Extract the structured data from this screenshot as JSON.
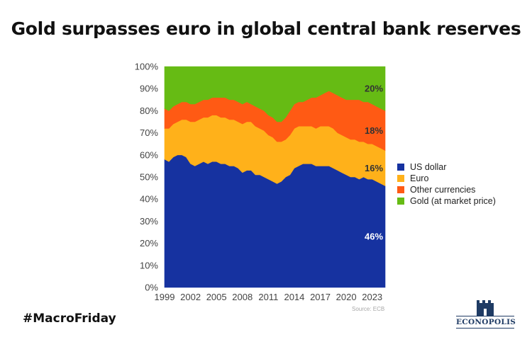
{
  "header": {
    "title": "Gold surpasses euro in global central bank reserves"
  },
  "footer": {
    "hashtag": "#MacroFriday",
    "source": "Source: ECB",
    "logo_text": "ECONOPOLIS"
  },
  "colors": {
    "us_dollar": "#1632a0",
    "euro": "#ffb11a",
    "other": "#ff5a14",
    "gold": "#66bb14"
  },
  "chart_data": {
    "type": "area",
    "stacked": true,
    "title": "",
    "xlabel": "",
    "ylabel": "",
    "xlim": [
      1999,
      2024.5
    ],
    "ylim": [
      0,
      100
    ],
    "x_ticks": [
      "1999",
      "2002",
      "2005",
      "2008",
      "2011",
      "2014",
      "2017",
      "2020",
      "2023"
    ],
    "y_ticks": [
      "0%",
      "10%",
      "20%",
      "30%",
      "40%",
      "50%",
      "60%",
      "70%",
      "80%",
      "90%",
      "100%"
    ],
    "grid": false,
    "legend_position": "right",
    "x": [
      1999,
      1999.5,
      2000,
      2000.5,
      2001,
      2001.5,
      2002,
      2002.5,
      2003,
      2003.5,
      2004,
      2004.5,
      2005,
      2005.5,
      2006,
      2006.5,
      2007,
      2007.5,
      2008,
      2008.5,
      2009,
      2009.5,
      2010,
      2010.5,
      2011,
      2011.5,
      2012,
      2012.5,
      2013,
      2013.5,
      2014,
      2014.5,
      2015,
      2015.5,
      2016,
      2016.5,
      2017,
      2017.5,
      2018,
      2018.5,
      2019,
      2019.5,
      2020,
      2020.5,
      2021,
      2021.5,
      2022,
      2022.5,
      2023,
      2023.5,
      2024,
      2024.5
    ],
    "series": [
      {
        "name": "US dollar",
        "color": "#1632a0",
        "values": [
          58,
          57,
          59,
          60,
          60,
          59,
          56,
          55,
          56,
          57,
          56,
          57,
          57,
          56,
          56,
          55,
          55,
          54,
          52,
          53,
          53,
          51,
          51,
          50,
          49,
          48,
          47,
          48,
          50,
          51,
          54,
          55,
          56,
          56,
          56,
          55,
          55,
          55,
          55,
          54,
          53,
          52,
          51,
          50,
          50,
          49,
          50,
          49,
          49,
          48,
          47,
          46
        ]
      },
      {
        "name": "Euro",
        "color": "#ffb11a",
        "values": [
          14,
          15,
          15,
          15,
          16,
          17,
          19,
          20,
          20,
          20,
          21,
          21,
          21,
          21,
          21,
          21,
          21,
          21,
          22,
          22,
          22,
          22,
          21,
          21,
          20,
          20,
          19,
          18,
          17,
          18,
          18,
          18,
          17,
          17,
          17,
          17,
          18,
          18,
          18,
          18,
          17,
          17,
          17,
          17,
          17,
          17,
          16,
          16,
          16,
          16,
          16,
          16
        ]
      },
      {
        "name": "Other currencies",
        "color": "#ff5a14",
        "values": [
          9,
          8,
          8,
          8,
          8,
          8,
          8,
          8,
          8,
          8,
          8,
          8,
          8,
          9,
          9,
          9,
          9,
          9,
          9,
          9,
          8,
          9,
          9,
          9,
          9,
          9,
          9,
          9,
          10,
          11,
          11,
          11,
          11,
          12,
          13,
          14,
          14,
          15,
          16,
          16,
          17,
          17,
          17,
          18,
          18,
          19,
          18,
          19,
          18,
          18,
          18,
          18
        ]
      },
      {
        "name": "Gold (at market price)",
        "color": "#66bb14",
        "values": [
          19,
          20,
          18,
          17,
          16,
          16,
          17,
          17,
          16,
          15,
          15,
          14,
          14,
          14,
          14,
          15,
          15,
          16,
          17,
          16,
          17,
          18,
          19,
          20,
          22,
          23,
          25,
          25,
          23,
          20,
          17,
          16,
          16,
          15,
          14,
          14,
          13,
          12,
          11,
          12,
          13,
          14,
          15,
          15,
          15,
          15,
          16,
          16,
          17,
          18,
          19,
          20
        ]
      }
    ],
    "annotations": [
      {
        "series": "US dollar",
        "text": "46%",
        "color": "#ffffff"
      },
      {
        "series": "Euro",
        "text": "16%",
        "color": "#333333"
      },
      {
        "series": "Other currencies",
        "text": "18%",
        "color": "#333333"
      },
      {
        "series": "Gold (at market price)",
        "text": "20%",
        "color": "#333333"
      }
    ]
  }
}
